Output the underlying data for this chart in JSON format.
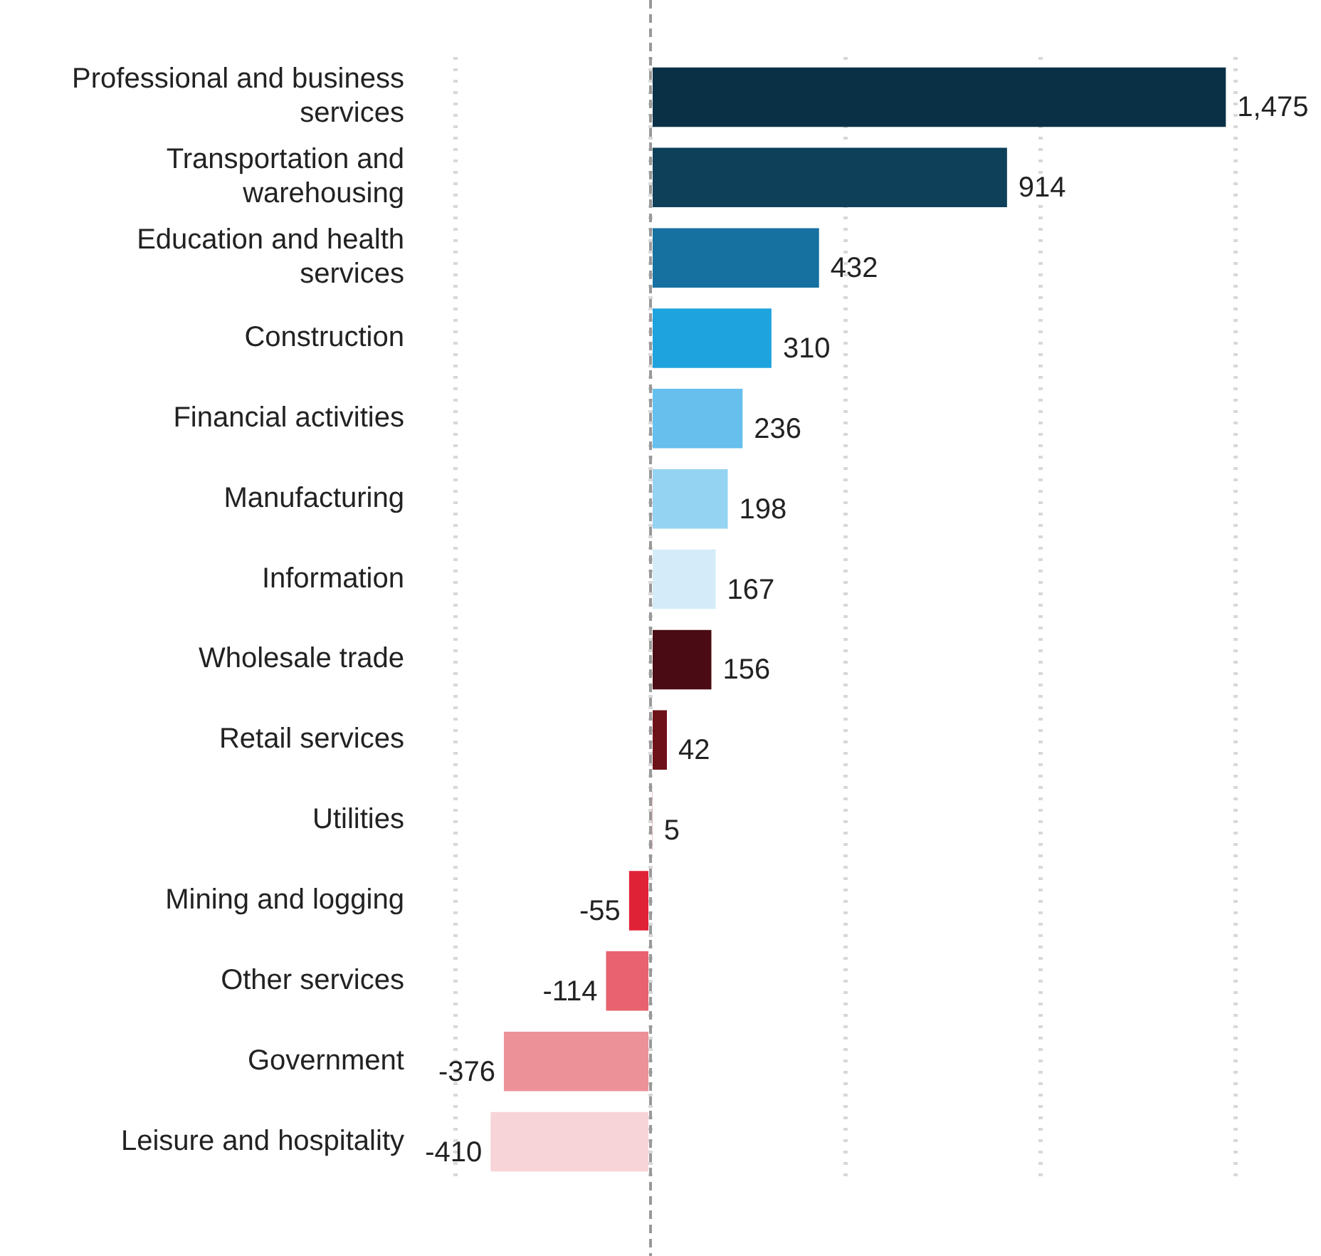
{
  "chart_data": {
    "type": "bar",
    "orientation": "horizontal",
    "categories": [
      "Professional and business services",
      "Transportation and warehousing",
      "Education and health services",
      "Construction",
      "Financial activities",
      "Manufacturing",
      "Information",
      "Wholesale trade",
      "Retail services",
      "Utilities",
      "Mining and logging",
      "Other services",
      "Government",
      "Leisure and hospitality"
    ],
    "values": [
      1475,
      914,
      432,
      310,
      236,
      198,
      167,
      156,
      42,
      5,
      -55,
      -114,
      -376,
      -410
    ],
    "colors": [
      "#0a3045",
      "#0e405a",
      "#1670a0",
      "#1ea3df",
      "#66bfec",
      "#95d3f2",
      "#d4ecf9",
      "#4a0b14",
      "#6e1219",
      "#c81a2c",
      "#e02236",
      "#e8636f",
      "#ed9199",
      "#f7d4d8"
    ],
    "value_labels": [
      "1,475",
      "914",
      "432",
      "310",
      "236",
      "198",
      "167",
      "156",
      "42",
      "5",
      "-55",
      "-114",
      "-376",
      "-410"
    ],
    "ref_lines": [
      {
        "axis": "x",
        "value": 0,
        "color": "#999999",
        "line_style": "dashed"
      }
    ],
    "grid": "x",
    "tick_labels": "y",
    "legend": false
  }
}
